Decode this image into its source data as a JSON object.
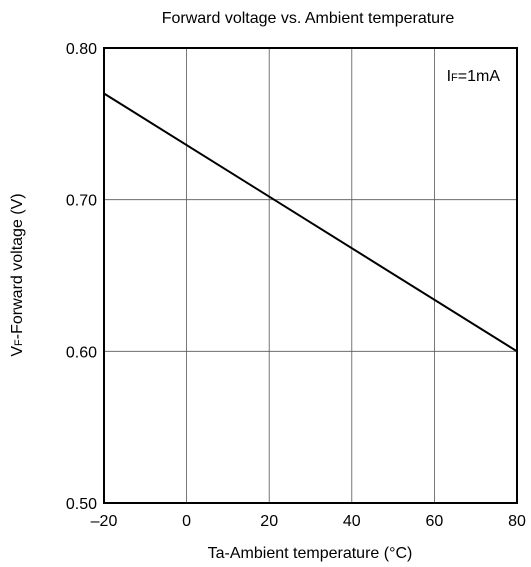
{
  "chart_data": {
    "type": "line",
    "title": "Forward voltage vs. Ambient temperature",
    "xlabel": "Ta-Ambient temperature (°C)",
    "ylabel": {
      "prefix": "V",
      "sub": "F",
      "rest": "-Forward voltage (V)"
    },
    "annotation": {
      "prefix": "I",
      "sub": "F",
      "rest": "=1mA"
    },
    "xlim": [
      -20,
      80
    ],
    "ylim": [
      0.5,
      0.8
    ],
    "x_ticks": [
      -20,
      0,
      20,
      40,
      60,
      80
    ],
    "x_tick_labels": [
      "–20",
      "0",
      "20",
      "40",
      "60",
      "80"
    ],
    "y_ticks": [
      0.5,
      0.6,
      0.7,
      0.8
    ],
    "y_tick_labels": [
      "0.50",
      "0.60",
      "0.70",
      "0.80"
    ],
    "grid": true,
    "series": [
      {
        "x": [
          -20,
          80
        ],
        "y": [
          0.77,
          0.6
        ],
        "color": "#000000"
      }
    ]
  }
}
